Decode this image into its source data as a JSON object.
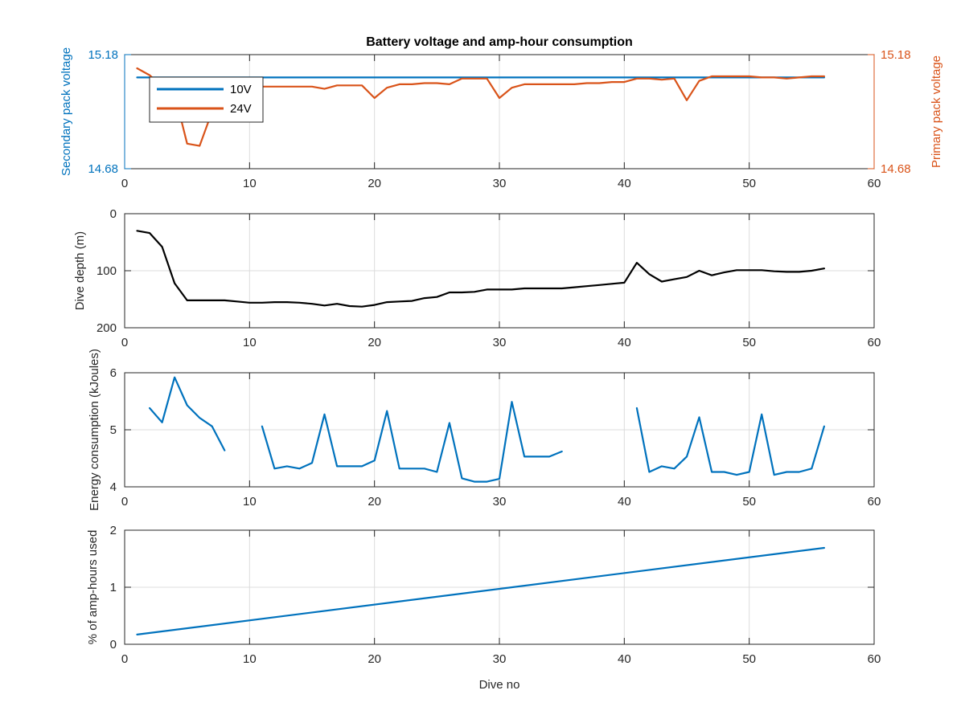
{
  "chart_data": [
    {
      "type": "line",
      "title": "Battery voltage and amp-hour consumption",
      "xlabel": "",
      "xlim": [
        0,
        60
      ],
      "xticks": [
        0,
        10,
        20,
        30,
        40,
        50,
        60
      ],
      "ylabel_left": "Secondary pack voltage",
      "ylabel_right": "Primary pack voltage",
      "ylim_left": [
        14.68,
        15.18
      ],
      "ylim_right": [
        14.68,
        15.18
      ],
      "yticks_left": [
        "14.68",
        "15.18"
      ],
      "yticks_right": [
        "14.68",
        "15.18"
      ],
      "color_left": "#0072BD",
      "color_right": "#D95319",
      "legend_position": "top-left",
      "grid": true,
      "series": [
        {
          "name": "10V",
          "axis": "left",
          "color": "#0072BD",
          "x": [
            1,
            56
          ],
          "y": [
            15.08,
            15.08
          ]
        },
        {
          "name": "24V",
          "axis": "right",
          "color": "#D95319",
          "x": [
            1,
            2,
            3,
            4,
            5,
            6,
            7,
            8,
            9,
            10,
            11,
            12,
            13,
            14,
            15,
            16,
            17,
            18,
            19,
            20,
            21,
            22,
            23,
            24,
            25,
            26,
            27,
            28,
            29,
            30,
            31,
            32,
            33,
            34,
            35,
            36,
            37,
            37.5,
            38,
            39,
            40,
            41,
            42,
            43,
            44,
            45,
            46,
            47,
            48,
            49,
            50,
            51,
            52,
            53,
            54,
            55,
            56
          ],
          "y": [
            15.12,
            15.09,
            15.04,
            15.01,
            14.79,
            14.78,
            14.93,
            15.04,
            15.04,
            15.04,
            15.04,
            15.04,
            15.04,
            15.04,
            15.04,
            15.03,
            15.045,
            15.045,
            15.045,
            14.99,
            15.035,
            15.05,
            15.05,
            15.055,
            15.055,
            15.05,
            15.075,
            15.075,
            15.075,
            14.99,
            15.035,
            15.05,
            15.05,
            15.05,
            15.05,
            15.05,
            15.055,
            15.055,
            15.055,
            15.06,
            15.06,
            15.075,
            15.075,
            15.07,
            15.075,
            14.98,
            15.065,
            15.085,
            15.085,
            15.085,
            15.085,
            15.08,
            15.08,
            15.075,
            15.08,
            15.085,
            15.085
          ]
        }
      ]
    },
    {
      "type": "line",
      "title": "",
      "xlabel": "",
      "ylabel": "Dive depth (m)",
      "xlim": [
        0,
        60
      ],
      "xticks": [
        0,
        10,
        20,
        30,
        40,
        50,
        60
      ],
      "ylim": [
        0,
        200
      ],
      "yticks": [
        0,
        100,
        200
      ],
      "y_reversed": true,
      "grid": true,
      "series": [
        {
          "color": "#000000",
          "x": [
            1,
            2,
            3,
            4,
            5,
            6,
            7,
            8,
            9,
            10,
            11,
            12,
            13,
            14,
            15,
            16,
            17,
            18,
            19,
            20,
            21,
            22,
            23,
            24,
            25,
            26,
            27,
            28,
            29,
            30,
            31,
            32,
            33,
            34,
            35,
            36,
            37,
            38,
            39,
            40,
            41,
            42,
            43,
            44,
            45,
            46,
            47,
            48,
            49,
            50,
            51,
            52,
            53,
            54,
            55,
            56
          ],
          "y": [
            30,
            34,
            58,
            122,
            152,
            152,
            152,
            152,
            154,
            156,
            156,
            155,
            155,
            156,
            158,
            161,
            158,
            162,
            163,
            160,
            155,
            154,
            153,
            148,
            146,
            138,
            138,
            137,
            133,
            133,
            133,
            131,
            131,
            131,
            131,
            129,
            127,
            125,
            123,
            121,
            86,
            106,
            119,
            115,
            111,
            100,
            108,
            103,
            99,
            99,
            99,
            101,
            102,
            102,
            100,
            96
          ]
        }
      ]
    },
    {
      "type": "line",
      "title": "",
      "xlabel": "",
      "ylabel": "Energy consumption (kJoules)",
      "xlim": [
        0,
        60
      ],
      "xticks": [
        0,
        10,
        20,
        30,
        40,
        50,
        60
      ],
      "ylim": [
        4,
        6
      ],
      "yticks": [
        4,
        5,
        6
      ],
      "grid": true,
      "series": [
        {
          "color": "#0072BD",
          "segments": [
            {
              "x": [
                2,
                3,
                4,
                5,
                6,
                7,
                8
              ],
              "y": [
                5.38,
                5.13,
                5.92,
                5.43,
                5.21,
                5.06,
                4.64
              ]
            },
            {
              "x": [
                11,
                12,
                13,
                14,
                15,
                16,
                17,
                18,
                19,
                20,
                21,
                22,
                23,
                24,
                25,
                26,
                27,
                28,
                29,
                30,
                31,
                32,
                33,
                34,
                35
              ],
              "y": [
                5.06,
                4.32,
                4.36,
                4.32,
                4.42,
                5.27,
                4.36,
                4.36,
                4.36,
                4.46,
                5.33,
                4.32,
                4.32,
                4.32,
                4.26,
                5.12,
                4.15,
                4.09,
                4.09,
                4.14,
                5.49,
                4.53,
                4.53,
                4.53,
                4.62
              ]
            },
            {
              "x": [
                41,
                42,
                43,
                44,
                45,
                46,
                47,
                48,
                49,
                50,
                51,
                52,
                53,
                54,
                55,
                56
              ],
              "y": [
                5.38,
                4.26,
                4.36,
                4.32,
                4.53,
                5.22,
                4.26,
                4.26,
                4.21,
                4.26,
                5.27,
                4.21,
                4.26,
                4.26,
                4.32,
                5.06
              ]
            }
          ]
        }
      ]
    },
    {
      "type": "line",
      "title": "",
      "xlabel": "Dive no",
      "ylabel": "% of amp-hours used",
      "xlim": [
        0,
        60
      ],
      "xticks": [
        0,
        10,
        20,
        30,
        40,
        50,
        60
      ],
      "ylim": [
        0,
        2
      ],
      "yticks": [
        0,
        1,
        2
      ],
      "grid": true,
      "series": [
        {
          "color": "#0072BD",
          "x": [
            1,
            56
          ],
          "y": [
            0.17,
            1.69
          ]
        }
      ]
    }
  ]
}
